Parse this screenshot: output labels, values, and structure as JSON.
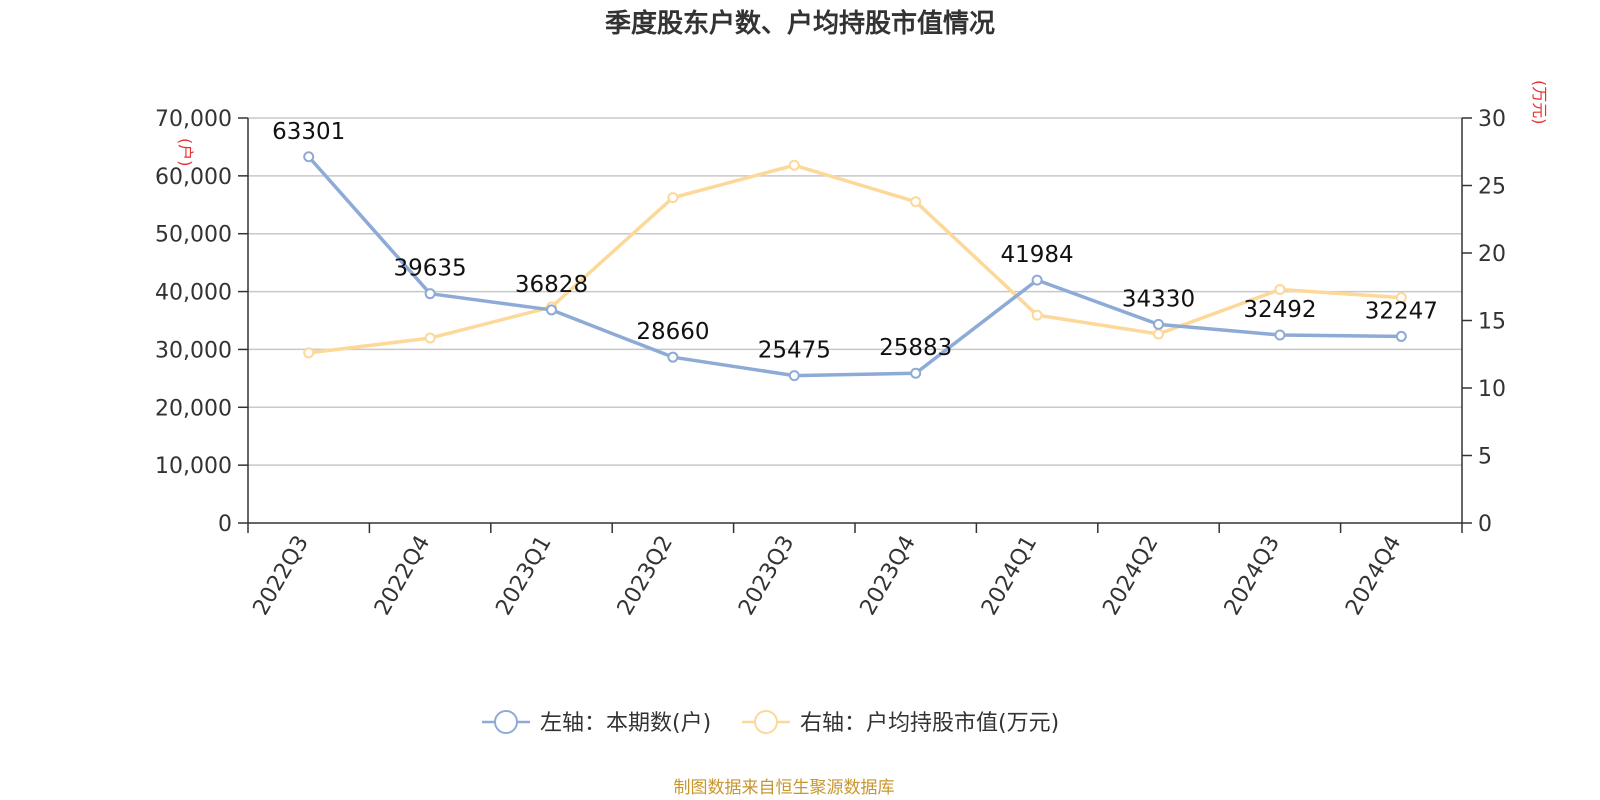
{
  "chart_data": {
    "type": "line",
    "title": "季度股东户数、户均持股市值情况",
    "categories": [
      "2022Q3",
      "2022Q4",
      "2023Q1",
      "2023Q2",
      "2023Q3",
      "2023Q4",
      "2024Q1",
      "2024Q2",
      "2024Q3",
      "2024Q4"
    ],
    "series": [
      {
        "name": "左轴：本期数(户)",
        "axis": "left",
        "color": "#8eaad6",
        "values": [
          63301,
          39635,
          36828,
          28660,
          25475,
          25883,
          41984,
          34330,
          32492,
          32247
        ],
        "labels": [
          "63301",
          "39635",
          "36828",
          "28660",
          "25475",
          "25883",
          "41984",
          "34330",
          "32492",
          "32247"
        ]
      },
      {
        "name": "右轴：户均持股市值(万元)",
        "axis": "right",
        "color": "#fcd899",
        "values": [
          12.6,
          13.7,
          16.0,
          24.1,
          26.5,
          23.8,
          15.4,
          14.0,
          17.3,
          16.7
        ]
      }
    ],
    "left_axis": {
      "unit": "(户)",
      "min": 0,
      "max": 70000,
      "ticks": [
        0,
        10000,
        20000,
        30000,
        40000,
        50000,
        60000,
        70000
      ],
      "tick_labels": [
        "0",
        "10,000",
        "20,000",
        "30,000",
        "40,000",
        "50,000",
        "60,000",
        "70,000"
      ]
    },
    "right_axis": {
      "unit": "(万元)",
      "min": 0,
      "max": 30,
      "ticks": [
        0,
        5,
        10,
        15,
        20,
        25,
        30
      ],
      "tick_labels": [
        "0",
        "5",
        "10",
        "15",
        "20",
        "25",
        "30"
      ]
    },
    "grid": true,
    "legend_position": "bottom",
    "source": "制图数据来自恒生聚源数据库"
  }
}
